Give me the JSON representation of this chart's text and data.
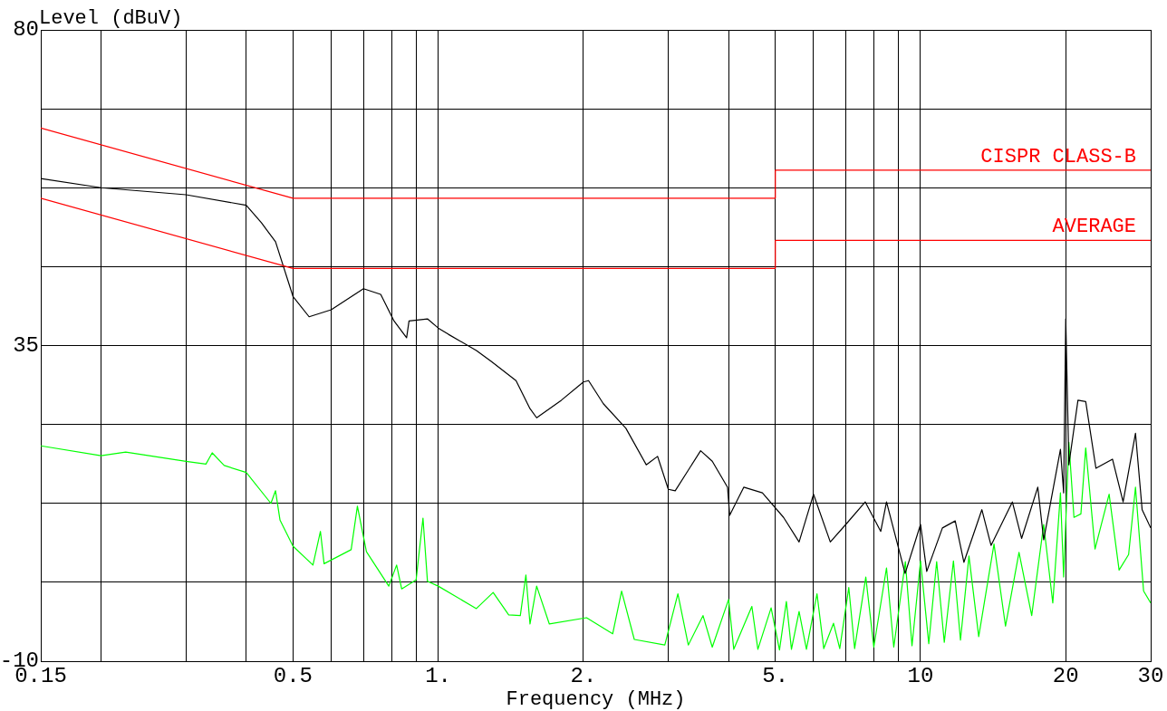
{
  "chart_data": {
    "type": "line",
    "xlabel": "Frequency (MHz)",
    "ylabel": "Level (dBuV)",
    "log": "x",
    "grid": true,
    "legend": false,
    "marker": "none",
    "line_style": "solid",
    "xlim": [
      0.15,
      30
    ],
    "ylim": [
      -10,
      80
    ],
    "xticks": [
      0.15,
      {
        "value": 0.2,
        "label": null
      },
      {
        "value": 0.3,
        "label": null
      },
      {
        "value": 0.4,
        "label": null
      },
      0.5,
      {
        "value": 0.6,
        "label": null
      },
      {
        "value": 0.7,
        "label": null
      },
      {
        "value": 0.8,
        "label": null
      },
      {
        "value": 0.9,
        "label": null
      },
      {
        "value": 1,
        "label": "1."
      },
      {
        "value": 2,
        "label": "2."
      },
      {
        "value": 3,
        "label": null
      },
      {
        "value": 4,
        "label": null
      },
      {
        "value": 5,
        "label": "5."
      },
      {
        "value": 6,
        "label": null
      },
      {
        "value": 7,
        "label": null
      },
      {
        "value": 8,
        "label": null
      },
      {
        "value": 9,
        "label": null
      },
      10,
      20,
      30
    ],
    "yticks": [
      -10,
      {
        "value": 1.25,
        "label": null
      },
      {
        "value": 12.5,
        "label": null
      },
      {
        "value": 23.75,
        "label": null
      },
      35,
      {
        "value": 46.25,
        "label": null
      },
      {
        "value": 57.5,
        "label": null
      },
      {
        "value": 68.75,
        "label": null
      },
      80
    ],
    "series": [
      {
        "name": "CISPR CLASS-B",
        "color": "#ff0000",
        "x": [
          0.15,
          0.5,
          5,
          5,
          30
        ],
        "values": [
          66,
          56,
          56,
          60,
          60
        ]
      },
      {
        "name": "AVERAGE",
        "color": "#ff0000",
        "x": [
          0.15,
          0.5,
          5,
          5,
          30
        ],
        "values": [
          56,
          46,
          46,
          50,
          50
        ]
      },
      {
        "color": "#000000",
        "x": [
          0.15,
          0.2,
          0.3,
          0.4,
          0.43,
          0.46,
          0.5,
          0.54,
          0.6,
          0.7,
          0.76,
          0.81,
          0.86,
          0.87,
          0.95,
          1.0,
          1.05,
          1.2,
          1.29,
          1.45,
          1.55,
          1.6,
          1.8,
          2.0,
          2.05,
          2.2,
          2.45,
          2.7,
          2.85,
          3.0,
          3.1,
          3.5,
          3.7,
          3.98,
          4.02,
          4.3,
          4.7,
          5.2,
          5.6,
          6.0,
          6.5,
          7.0,
          7.68,
          8.27,
          8.5,
          9.29,
          10,
          10.3,
          11.1,
          11.8,
          12.3,
          13.4,
          14.0,
          15.5,
          16.2,
          17.5,
          18.0,
          19.5,
          19.8,
          20,
          20.3,
          21.2,
          22,
          23.1,
          25,
          26.3,
          27.9,
          28.8,
          30
        ],
        "values": [
          58.8,
          57.5,
          56.5,
          55.0,
          52.5,
          49.8,
          42.0,
          39.1,
          40.1,
          43.1,
          42.3,
          38.5,
          36.1,
          38.5,
          38.8,
          37.5,
          36.6,
          34.3,
          32.7,
          30.0,
          26.0,
          24.7,
          27.2,
          29.8,
          30.0,
          26.7,
          23.2,
          18.0,
          19.2,
          14.5,
          14.3,
          20.0,
          18.5,
          14.8,
          10.8,
          14.8,
          14.0,
          10.5,
          7.0,
          13.8,
          7.0,
          9.5,
          12.7,
          8.5,
          12.7,
          2.5,
          9.5,
          2.8,
          9.0,
          10.0,
          4.1,
          11.6,
          6.5,
          12.7,
          7.5,
          14.8,
          7.3,
          20.2,
          14.0,
          38.8,
          18.0,
          27.2,
          27.0,
          17.5,
          18.8,
          12.7,
          22.5,
          11.6,
          9.0
        ]
      },
      {
        "color": "#00ff00",
        "x": [
          0.15,
          0.2,
          0.225,
          0.3,
          0.33,
          0.34,
          0.36,
          0.4,
          0.45,
          0.46,
          0.47,
          0.5,
          0.55,
          0.57,
          0.58,
          0.66,
          0.68,
          0.71,
          0.79,
          0.82,
          0.84,
          0.9,
          0.93,
          0.95,
          1.0,
          1.2,
          1.3,
          1.4,
          1.48,
          1.52,
          1.55,
          1.6,
          1.7,
          2.03,
          2.3,
          2.4,
          2.55,
          2.95,
          3.14,
          3.3,
          3.54,
          3.7,
          4.0,
          4.1,
          4.47,
          4.6,
          4.9,
          5.1,
          5.27,
          5.4,
          5.6,
          5.8,
          6.1,
          6.3,
          6.6,
          6.8,
          7.1,
          7.3,
          7.7,
          8.0,
          8.5,
          8.8,
          9.3,
          9.6,
          10,
          10.4,
          10.8,
          11.2,
          11.7,
          12.1,
          12.6,
          13.2,
          14.2,
          15.0,
          16.0,
          17.0,
          18.0,
          18.8,
          19.5,
          19.8,
          20.3,
          20.8,
          21.5,
          22,
          23.0,
          24.6,
          25.8,
          27.0,
          27.9,
          29.0,
          30
        ],
        "values": [
          20.7,
          19.3,
          19.8,
          18.5,
          18.1,
          19.7,
          17.9,
          16.9,
          12.5,
          14.3,
          10.1,
          6.4,
          3.7,
          8.5,
          3.9,
          5.9,
          12.1,
          5.6,
          0.7,
          3.7,
          0.3,
          1.6,
          10.4,
          1.4,
          0.7,
          -2.5,
          -0.2,
          -3.4,
          -3.5,
          2.3,
          -4.7,
          0.7,
          -4.7,
          -3.8,
          -6.1,
          0.0,
          -6.9,
          -7.7,
          -0.4,
          -7.7,
          -3.5,
          -8.0,
          -1.2,
          -8.3,
          -2.2,
          -8.3,
          -2.4,
          -8.4,
          -1.5,
          -8.3,
          -2.9,
          -8.3,
          -0.4,
          -8.2,
          -4.6,
          -8.2,
          0.5,
          -8.2,
          2.0,
          -8.0,
          3.3,
          -8.0,
          4.2,
          -7.8,
          4.3,
          -7.5,
          4.2,
          -7.3,
          4.3,
          -7.0,
          5.0,
          -6.5,
          6.7,
          -5.0,
          5.5,
          -3.5,
          9.5,
          -1.7,
          14.0,
          2.0,
          21.2,
          10.5,
          11.0,
          20.4,
          6.0,
          13.8,
          3.0,
          5.2,
          14.8,
          0.0,
          -1.7
        ]
      }
    ]
  }
}
